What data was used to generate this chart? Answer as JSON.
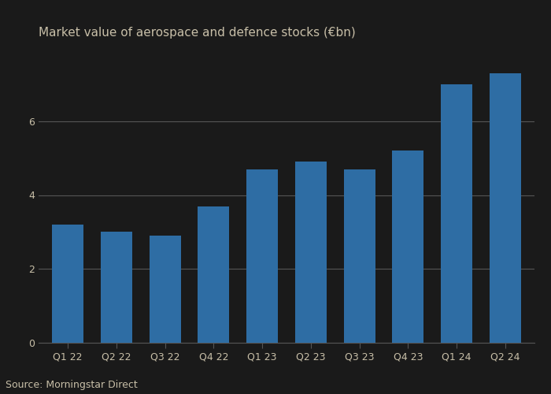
{
  "categories": [
    "Q1 22",
    "Q2 22",
    "Q3 22",
    "Q4 22",
    "Q1 23",
    "Q2 23",
    "Q3 23",
    "Q4 23",
    "Q1 24",
    "Q2 24"
  ],
  "values": [
    3.2,
    3.0,
    2.9,
    3.7,
    4.7,
    4.9,
    4.7,
    5.2,
    7.0,
    7.3
  ],
  "bar_color": "#2e6da4",
  "title": "Market value of aerospace and defence stocks (€bn)",
  "ylim": [
    0,
    8
  ],
  "yticks": [
    0,
    2,
    4,
    6
  ],
  "source": "Source: Morningstar Direct",
  "background_color": "#1a1a1a",
  "plot_bg_color": "#1a1a1a",
  "grid_color": "#555555",
  "title_color": "#c8bfa8",
  "tick_color": "#c8bfa8",
  "source_color": "#c8bfa8",
  "spine_color": "#555555",
  "title_fontsize": 11,
  "tick_fontsize": 9,
  "source_fontsize": 9
}
